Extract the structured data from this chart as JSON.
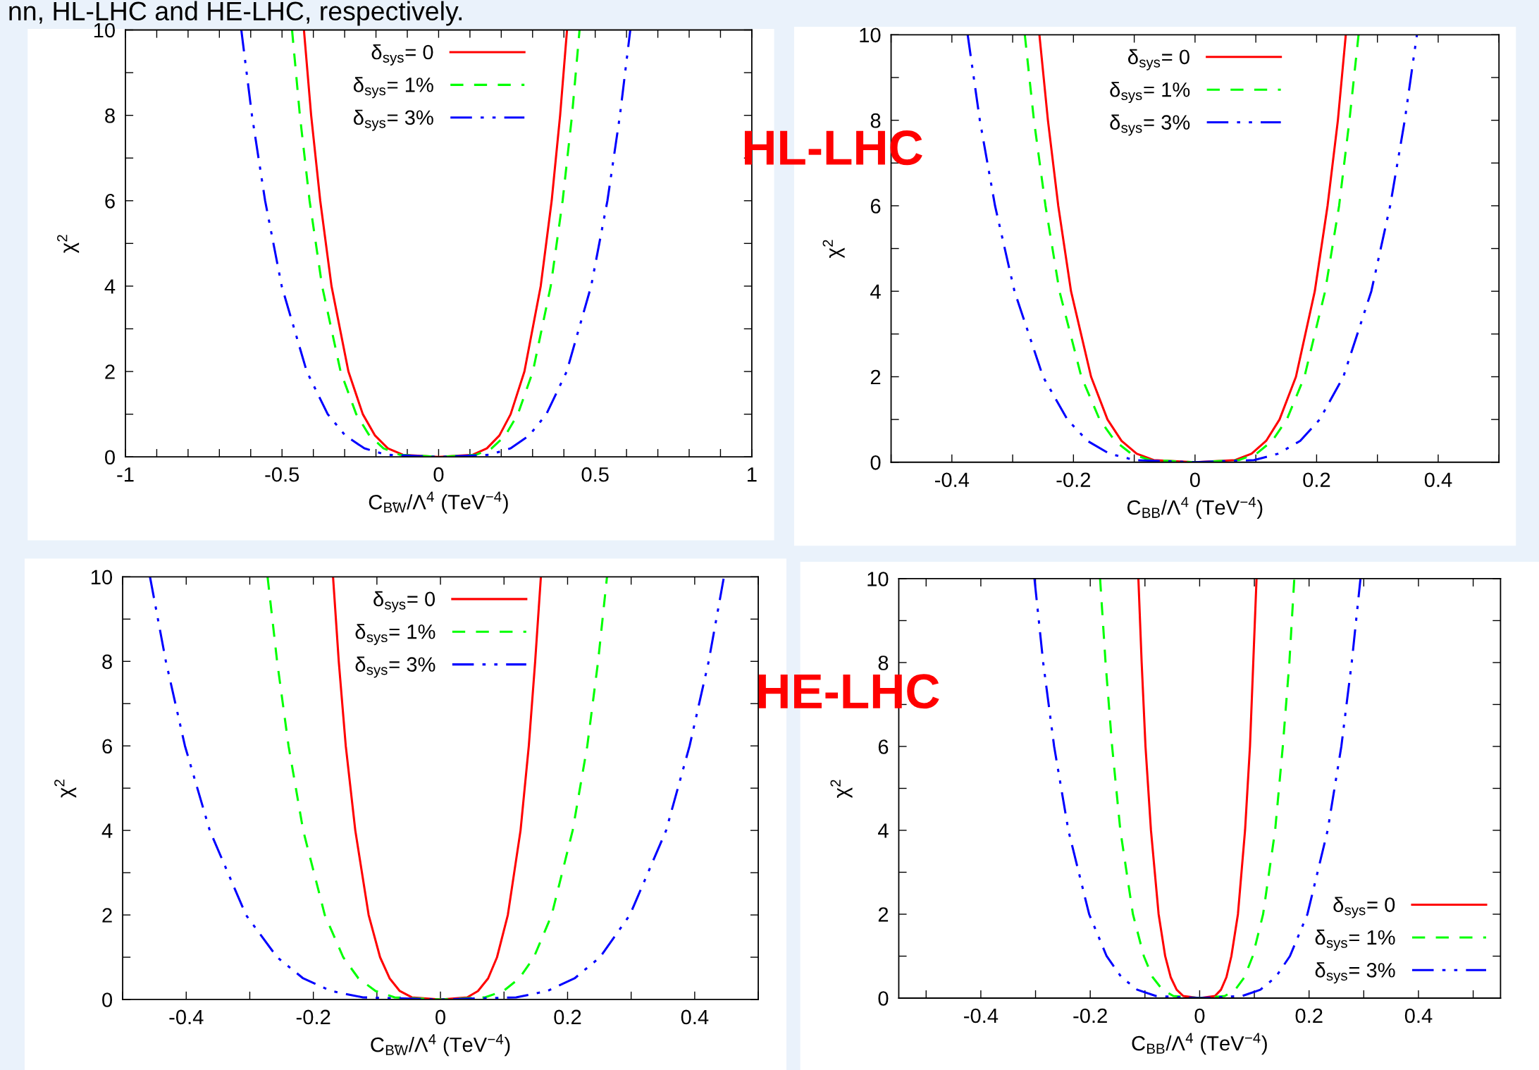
{
  "chart_data": [
    {
      "type": "line",
      "xlabel": "C$_{B̃W}$/Λ$^{4}$ (TeV$^{−4}$)",
      "ylabel": "χ$^{2}$",
      "annotations": [
        "nn, HL-LHC and HE-LHC, respectively.",
        "HL-LHC"
      ],
      "xlim": [
        -1,
        1
      ],
      "ylim": [
        0,
        10
      ],
      "xticks": [
        -1,
        {
          "value": -0.9,
          "label": null
        },
        {
          "value": -0.8,
          "label": null
        },
        {
          "value": -0.7,
          "label": null
        },
        {
          "value": -0.6,
          "label": null
        },
        -0.5,
        {
          "value": -0.4,
          "label": null
        },
        {
          "value": -0.3,
          "label": null
        },
        {
          "value": -0.2,
          "label": null
        },
        {
          "value": -0.1,
          "label": null
        },
        0,
        {
          "value": 0.1,
          "label": null
        },
        {
          "value": 0.2,
          "label": null
        },
        {
          "value": 0.3,
          "label": null
        },
        {
          "value": 0.4,
          "label": null
        },
        0.5,
        {
          "value": 0.6,
          "label": null
        },
        {
          "value": 0.7,
          "label": null
        },
        {
          "value": 0.8,
          "label": null
        },
        {
          "value": 0.9,
          "label": null
        },
        1
      ],
      "yticks": [
        0,
        {
          "value": 1,
          "label": null
        },
        2,
        {
          "value": 3,
          "label": null
        },
        4,
        {
          "value": 5,
          "label": null
        },
        6,
        {
          "value": 7,
          "label": null
        },
        8,
        {
          "value": 9,
          "label": null
        },
        10
      ],
      "legend": "top center",
      "grid": false,
      "series": [
        {
          "name": "δ$_{sys}$= 0",
          "color": "#ff0000",
          "line_style": "solid",
          "x": [
            -0.43,
            -0.407,
            -0.378,
            -0.342,
            -0.288,
            -0.242,
            -0.203,
            -0.162,
            -0.114,
            0,
            0.109,
            0.154,
            0.194,
            0.23,
            0.274,
            0.326,
            0.361,
            0.388,
            0.41
          ],
          "values": [
            10,
            8,
            6,
            4,
            2,
            1,
            0.5,
            0.2,
            0.05,
            0,
            0.05,
            0.2,
            0.5,
            1,
            2,
            4,
            6,
            8,
            10
          ]
        },
        {
          "name": "δ$_{sys}$= 1%",
          "color": "#00ff00",
          "line_style": "dashed",
          "x": [
            -0.468,
            -0.443,
            -0.412,
            -0.372,
            -0.313,
            -0.263,
            -0.221,
            -0.176,
            -0.124,
            0,
            0.12,
            0.169,
            0.213,
            0.253,
            0.301,
            0.358,
            0.396,
            0.426,
            0.45
          ],
          "values": [
            10,
            8,
            6,
            4,
            2,
            1,
            0.5,
            0.2,
            0.05,
            0,
            0.05,
            0.2,
            0.5,
            1,
            2,
            4,
            6,
            8,
            10
          ]
        },
        {
          "name": "δ$_{sys}$= 3%",
          "color": "#0000ff",
          "line_style": "dashdot",
          "x": [
            -0.63,
            -0.596,
            -0.554,
            -0.501,
            -0.421,
            -0.354,
            -0.298,
            -0.237,
            -0.168,
            0,
            0.163,
            0.23,
            0.289,
            0.344,
            0.409,
            0.487,
            0.539,
            0.579,
            0.612
          ],
          "values": [
            10,
            8,
            6,
            4,
            2,
            1,
            0.5,
            0.2,
            0.05,
            0,
            0.05,
            0.2,
            0.5,
            1,
            2,
            4,
            6,
            8,
            10
          ]
        }
      ]
    },
    {
      "type": "line",
      "xlabel": "C$_{BB}$/Λ$^{4}$ (TeV$^{−4}$)",
      "ylabel": "χ$^{2}$",
      "xlim": [
        -0.5,
        0.5
      ],
      "ylim": [
        0,
        10
      ],
      "xticks": [
        {
          "value": -0.5,
          "label": null
        },
        -0.4,
        {
          "value": -0.3,
          "label": null
        },
        -0.2,
        {
          "value": -0.1,
          "label": null
        },
        0,
        {
          "value": 0.1,
          "label": null
        },
        0.2,
        {
          "value": 0.3,
          "label": null
        },
        0.4,
        {
          "value": 0.5,
          "label": null
        }
      ],
      "yticks": [
        0,
        {
          "value": 1,
          "label": null
        },
        2,
        {
          "value": 3,
          "label": null
        },
        4,
        {
          "value": 5,
          "label": null
        },
        6,
        {
          "value": 7,
          "label": null
        },
        8,
        {
          "value": 9,
          "label": null
        },
        10
      ],
      "legend": "top center",
      "grid": false,
      "series": [
        {
          "name": "δ$_{sys}$= 0",
          "color": "#ff0000",
          "line_style": "solid",
          "x": [
            -0.256,
            -0.242,
            -0.225,
            -0.204,
            -0.171,
            -0.144,
            -0.121,
            -0.096,
            -0.068,
            0,
            0.066,
            0.093,
            0.117,
            0.139,
            0.166,
            0.197,
            0.218,
            0.235,
            0.248
          ],
          "values": [
            10,
            8,
            6,
            4,
            2,
            1,
            0.5,
            0.2,
            0.05,
            0,
            0.05,
            0.2,
            0.5,
            1,
            2,
            4,
            6,
            8,
            10
          ]
        },
        {
          "name": "δ$_{sys}$= 1%",
          "color": "#00ff00",
          "line_style": "dashed",
          "x": [
            -0.28,
            -0.265,
            -0.246,
            -0.223,
            -0.187,
            -0.157,
            -0.132,
            -0.105,
            -0.074,
            0,
            0.072,
            0.101,
            0.127,
            0.151,
            0.18,
            0.214,
            0.237,
            0.254,
            0.269
          ],
          "values": [
            10,
            8,
            6,
            4,
            2,
            1,
            0.5,
            0.2,
            0.05,
            0,
            0.05,
            0.2,
            0.5,
            1,
            2,
            4,
            6,
            8,
            10
          ]
        },
        {
          "name": "δ$_{sys}$= 3%",
          "color": "#0000ff",
          "line_style": "dashdot",
          "x": [
            -0.374,
            -0.354,
            -0.329,
            -0.297,
            -0.25,
            -0.21,
            -0.177,
            -0.141,
            -0.099,
            0,
            0.097,
            0.137,
            0.173,
            0.205,
            0.244,
            0.29,
            0.321,
            0.345,
            0.365
          ],
          "values": [
            10,
            8,
            6,
            4,
            2,
            1,
            0.5,
            0.2,
            0.05,
            0,
            0.05,
            0.2,
            0.5,
            1,
            2,
            4,
            6,
            8,
            10
          ]
        }
      ]
    },
    {
      "type": "line",
      "xlabel": "C$_{B̃W}$/Λ$^{4}$ (TeV$^{−4}$)",
      "ylabel": "χ$^{2}$",
      "annotations": [
        "HE-LHC"
      ],
      "xlim": [
        -0.5,
        0.5
      ],
      "ylim": [
        0,
        10
      ],
      "xticks": [
        {
          "value": -0.5,
          "label": null
        },
        -0.4,
        {
          "value": -0.3,
          "label": null
        },
        -0.2,
        {
          "value": -0.1,
          "label": null
        },
        0,
        {
          "value": 0.1,
          "label": null
        },
        0.2,
        {
          "value": 0.3,
          "label": null
        },
        0.4,
        {
          "value": 0.5,
          "label": null
        }
      ],
      "yticks": [
        0,
        {
          "value": 1,
          "label": null
        },
        2,
        {
          "value": 3,
          "label": null
        },
        4,
        {
          "value": 5,
          "label": null
        },
        6,
        {
          "value": 7,
          "label": null
        },
        8,
        {
          "value": 9,
          "label": null
        },
        10
      ],
      "legend": "top center",
      "grid": false,
      "series": [
        {
          "name": "δ$_{sys}$= 0",
          "color": "#ff0000",
          "line_style": "solid",
          "x": [
            -0.169,
            -0.16,
            -0.149,
            -0.134,
            -0.113,
            -0.095,
            -0.08,
            -0.064,
            -0.045,
            0,
            0.042,
            0.059,
            0.075,
            0.089,
            0.106,
            0.126,
            0.139,
            0.149,
            0.158
          ],
          "values": [
            10,
            8,
            6,
            4,
            2,
            1,
            0.5,
            0.2,
            0.05,
            0,
            0.05,
            0.2,
            0.5,
            1,
            2,
            4,
            6,
            8,
            10
          ]
        },
        {
          "name": "δ$_{sys}$= 1%",
          "color": "#00ff00",
          "line_style": "dashed",
          "x": [
            -0.272,
            -0.257,
            -0.239,
            -0.216,
            -0.182,
            -0.153,
            -0.129,
            -0.102,
            -0.072,
            0,
            0.07,
            0.099,
            0.124,
            0.147,
            0.175,
            0.208,
            0.231,
            0.248,
            0.262
          ],
          "values": [
            10,
            8,
            6,
            4,
            2,
            1,
            0.5,
            0.2,
            0.05,
            0,
            0.05,
            0.2,
            0.5,
            1,
            2,
            4,
            6,
            8,
            10
          ]
        },
        {
          "name": "δ$_{sys}$= 3%",
          "color": "#0000ff",
          "line_style": "dashdot",
          "x": [
            -0.457,
            -0.432,
            -0.402,
            -0.363,
            -0.306,
            -0.257,
            -0.216,
            -0.172,
            -0.122,
            0,
            0.119,
            0.168,
            0.211,
            0.251,
            0.298,
            0.355,
            0.392,
            0.422,
            0.446
          ],
          "values": [
            10,
            8,
            6,
            4,
            2,
            1,
            0.5,
            0.2,
            0.05,
            0,
            0.05,
            0.2,
            0.5,
            1,
            2,
            4,
            6,
            8,
            10
          ]
        }
      ]
    },
    {
      "type": "line",
      "xlabel": "C$_{BB}$/Λ$^{4}$ (TeV$^{−4}$)",
      "ylabel": "χ$^{2}$",
      "xlim": [
        -0.55,
        0.55
      ],
      "ylim": [
        0,
        10
      ],
      "xticks": [
        {
          "value": -0.5,
          "label": null
        },
        -0.4,
        {
          "value": -0.3,
          "label": null
        },
        -0.2,
        {
          "value": -0.1,
          "label": null
        },
        0,
        {
          "value": 0.1,
          "label": null
        },
        0.2,
        {
          "value": 0.3,
          "label": null
        },
        0.4,
        {
          "value": 0.5,
          "label": null
        }
      ],
      "yticks": [
        0,
        {
          "value": 1,
          "label": null
        },
        2,
        {
          "value": 3,
          "label": null
        },
        4,
        {
          "value": 5,
          "label": null
        },
        6,
        {
          "value": 7,
          "label": null
        },
        8,
        {
          "value": 9,
          "label": null
        },
        10
      ],
      "legend": "bottom right",
      "grid": false,
      "series": [
        {
          "name": "δ$_{sys}$= 0",
          "color": "#ff0000",
          "line_style": "solid",
          "x": [
            -0.112,
            -0.106,
            -0.099,
            -0.089,
            -0.075,
            -0.063,
            -0.053,
            -0.042,
            -0.03,
            0,
            0.028,
            0.039,
            0.049,
            0.058,
            0.07,
            0.083,
            0.092,
            0.098,
            0.104
          ],
          "values": [
            10,
            8,
            6,
            4,
            2,
            1,
            0.5,
            0.2,
            0.05,
            0,
            0.05,
            0.2,
            0.5,
            1,
            2,
            4,
            6,
            8,
            10
          ]
        },
        {
          "name": "δ$_{sys}$= 1%",
          "color": "#00ff00",
          "line_style": "dashed",
          "x": [
            -0.182,
            -0.172,
            -0.16,
            -0.145,
            -0.122,
            -0.102,
            -0.086,
            -0.068,
            -0.048,
            0,
            0.046,
            0.065,
            0.082,
            0.097,
            0.116,
            0.138,
            0.152,
            0.164,
            0.173
          ],
          "values": [
            10,
            8,
            6,
            4,
            2,
            1,
            0.5,
            0.2,
            0.05,
            0,
            0.05,
            0.2,
            0.5,
            1,
            2,
            4,
            6,
            8,
            10
          ]
        },
        {
          "name": "δ$_{sys}$= 3%",
          "color": "#0000ff",
          "line_style": "dashdot",
          "x": [
            -0.302,
            -0.286,
            -0.266,
            -0.24,
            -0.202,
            -0.17,
            -0.143,
            -0.114,
            -0.08,
            0,
            0.078,
            0.111,
            0.139,
            0.165,
            0.197,
            0.234,
            0.259,
            0.278,
            0.294
          ],
          "values": [
            10,
            8,
            6,
            4,
            2,
            1,
            0.5,
            0.2,
            0.05,
            0,
            0.05,
            0.2,
            0.5,
            1,
            2,
            4,
            6,
            8,
            10
          ]
        }
      ]
    }
  ]
}
